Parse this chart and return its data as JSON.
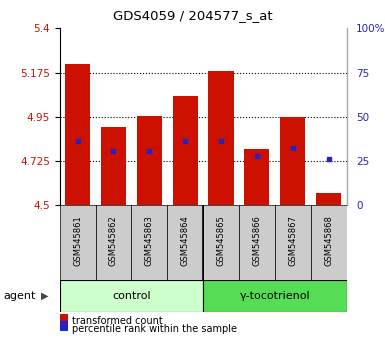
{
  "title": "GDS4059 / 204577_s_at",
  "samples": [
    "GSM545861",
    "GSM545862",
    "GSM545863",
    "GSM545864",
    "GSM545865",
    "GSM545866",
    "GSM545867",
    "GSM545868"
  ],
  "bar_bottoms": [
    4.5,
    4.5,
    4.5,
    4.5,
    4.5,
    4.5,
    4.5,
    4.5
  ],
  "bar_tops": [
    5.22,
    4.9,
    4.955,
    5.055,
    5.185,
    4.785,
    4.948,
    4.565
  ],
  "blue_values": [
    4.825,
    4.775,
    4.775,
    4.825,
    4.825,
    4.75,
    4.79,
    4.735
  ],
  "bar_color": "#cc1100",
  "blue_color": "#2222cc",
  "ylim_left": [
    4.5,
    5.4
  ],
  "ylim_right": [
    0,
    100
  ],
  "yticks_left": [
    4.5,
    4.725,
    4.95,
    5.175,
    5.4
  ],
  "ytick_labels_left": [
    "4.5",
    "4.725",
    "4.95",
    "5.175",
    "5.4"
  ],
  "yticks_right": [
    0,
    25,
    50,
    75,
    100
  ],
  "ytick_labels_right": [
    "0",
    "25",
    "50",
    "75",
    "100%"
  ],
  "hlines": [
    4.725,
    4.95,
    5.175
  ],
  "control_label": "control",
  "treatment_label": "γ-tocotrienol",
  "agent_label": "agent",
  "legend_red": "transformed count",
  "legend_blue": "percentile rank within the sample",
  "control_bg": "#ccffcc",
  "treatment_bg": "#55dd55",
  "sample_bg": "#cccccc",
  "bar_width": 0.7,
  "fig_width": 3.85,
  "fig_height": 3.54,
  "dpi": 100
}
